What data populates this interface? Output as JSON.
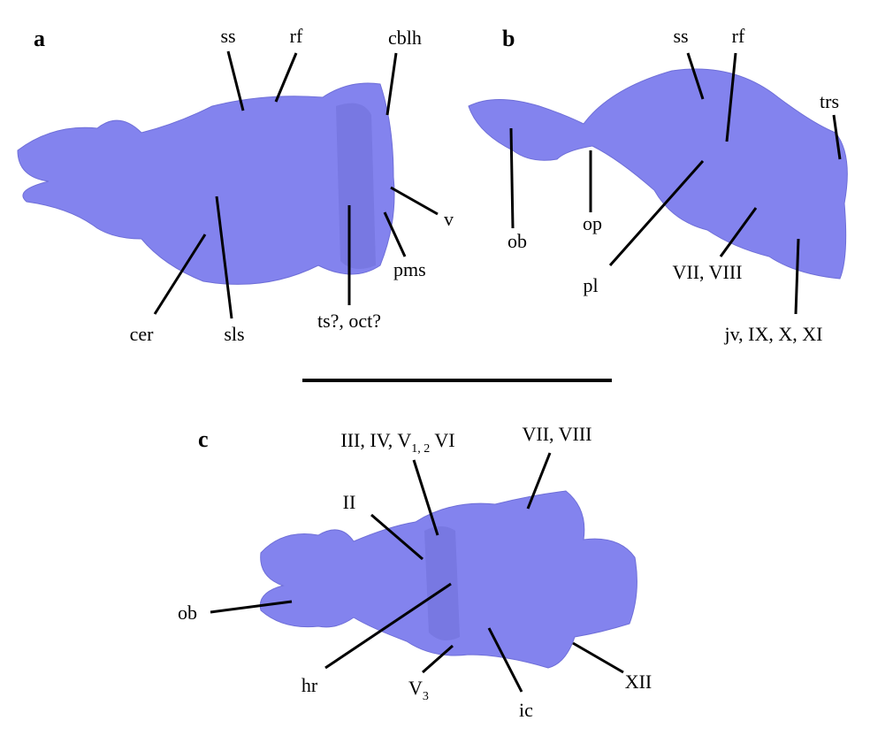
{
  "panels": [
    {
      "letter": "a",
      "labels": [
        "ss",
        "rf",
        "cblh",
        "v",
        "pms",
        "ts?, oct?",
        "sls",
        "cer"
      ]
    },
    {
      "letter": "b",
      "labels": [
        "ss",
        "rf",
        "trs",
        "ob",
        "op",
        "pl",
        "VII, VIII",
        "jv, IX, X, XI"
      ]
    },
    {
      "letter": "c",
      "labels": [
        {
          "text": "III, IV, V",
          "sub": "1, 2",
          "after": " VI"
        },
        "VII, VIII",
        "II",
        "ob",
        "hr",
        {
          "text": "V",
          "sub": "3"
        },
        "ic",
        "XII"
      ]
    }
  ]
}
